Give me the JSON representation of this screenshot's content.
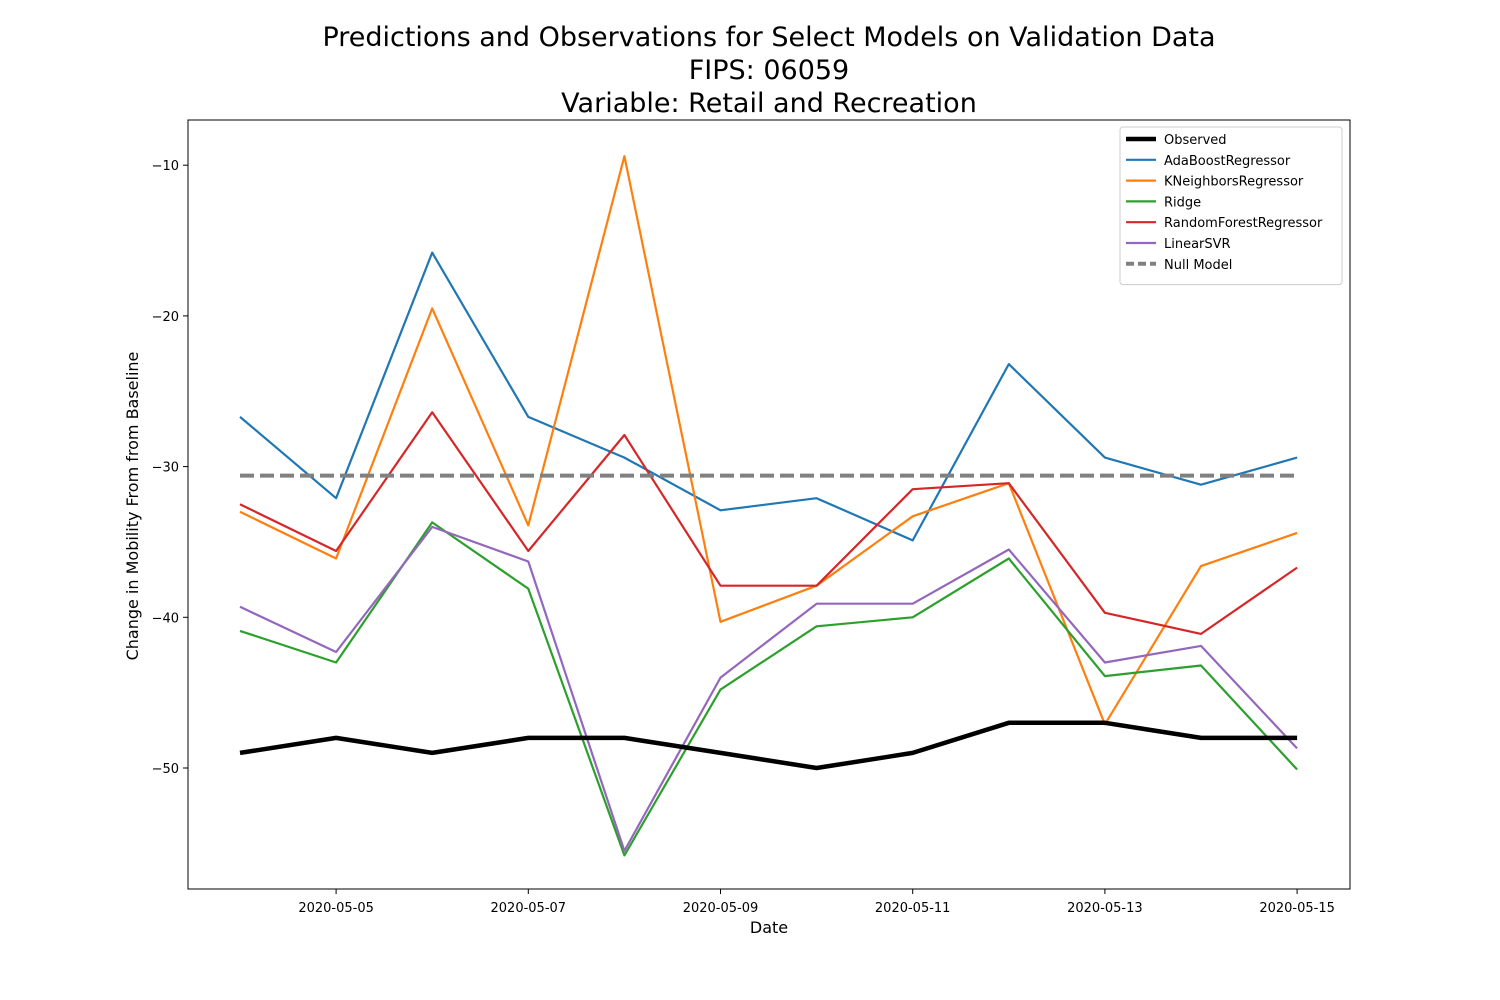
{
  "chart_data": {
    "type": "line",
    "title": [
      "Predictions and Observations for Select Models on Validation Data",
      "FIPS: 06059",
      "Variable: Retail and Recreation"
    ],
    "xlabel": "Date",
    "ylabel": "Change in Mobility From from Baseline",
    "x": [
      "2020-05-04",
      "2020-05-05",
      "2020-05-06",
      "2020-05-07",
      "2020-05-08",
      "2020-05-09",
      "2020-05-10",
      "2020-05-11",
      "2020-05-12",
      "2020-05-13",
      "2020-05-14",
      "2020-05-15"
    ],
    "x_ticks": [
      "2020-05-05",
      "2020-05-07",
      "2020-05-09",
      "2020-05-11",
      "2020-05-13",
      "2020-05-15"
    ],
    "ylim": [
      -58,
      -7
    ],
    "y_ticks": [
      -10,
      -20,
      -30,
      -40,
      -50
    ],
    "y_tick_labels": [
      "−10",
      "−20",
      "−30",
      "−40",
      "−50"
    ],
    "grid": false,
    "legend_position": "top-right",
    "series": [
      {
        "name": "Observed",
        "color": "#000000",
        "style": "solid-thick",
        "values": [
          -49,
          -48,
          -49,
          -48,
          -48,
          -49,
          -50,
          -49,
          -47,
          -47,
          -48,
          -48
        ]
      },
      {
        "name": "AdaBoostRegressor",
        "color": "#1f77b4",
        "style": "solid",
        "values": [
          -26.7,
          -32.1,
          -15.8,
          -26.7,
          -29.4,
          -32.9,
          -32.1,
          -34.9,
          -23.2,
          -29.4,
          -31.2,
          -29.4
        ]
      },
      {
        "name": "KNeighborsRegressor",
        "color": "#ff7f0e",
        "style": "solid",
        "values": [
          -33.0,
          -36.1,
          -19.5,
          -33.9,
          -9.4,
          -40.3,
          -37.9,
          -33.3,
          -31.1,
          -47.1,
          -36.6,
          -34.4
        ]
      },
      {
        "name": "Ridge",
        "color": "#2ca02c",
        "style": "solid",
        "values": [
          -40.9,
          -43.0,
          -33.7,
          -38.1,
          -55.8,
          -44.8,
          -40.6,
          -40.0,
          -36.1,
          -43.9,
          -43.2,
          -50.1
        ]
      },
      {
        "name": "RandomForestRegressor",
        "color": "#d62728",
        "style": "solid",
        "values": [
          -32.5,
          -35.6,
          -26.4,
          -35.6,
          -27.9,
          -37.9,
          -37.9,
          -31.5,
          -31.1,
          -39.7,
          -41.1,
          -36.7
        ]
      },
      {
        "name": "LinearSVR",
        "color": "#9467bd",
        "style": "solid",
        "values": [
          -39.3,
          -42.3,
          -34.0,
          -36.3,
          -55.5,
          -44.0,
          -39.1,
          -39.1,
          -35.5,
          -43.0,
          -41.9,
          -48.7
        ]
      },
      {
        "name": "Null Model",
        "color": "#808080",
        "style": "dashed-thick",
        "values": [
          -30.6,
          -30.6,
          -30.6,
          -30.6,
          -30.6,
          -30.6,
          -30.6,
          -30.6,
          -30.6,
          -30.6,
          -30.6,
          -30.6
        ]
      }
    ]
  }
}
